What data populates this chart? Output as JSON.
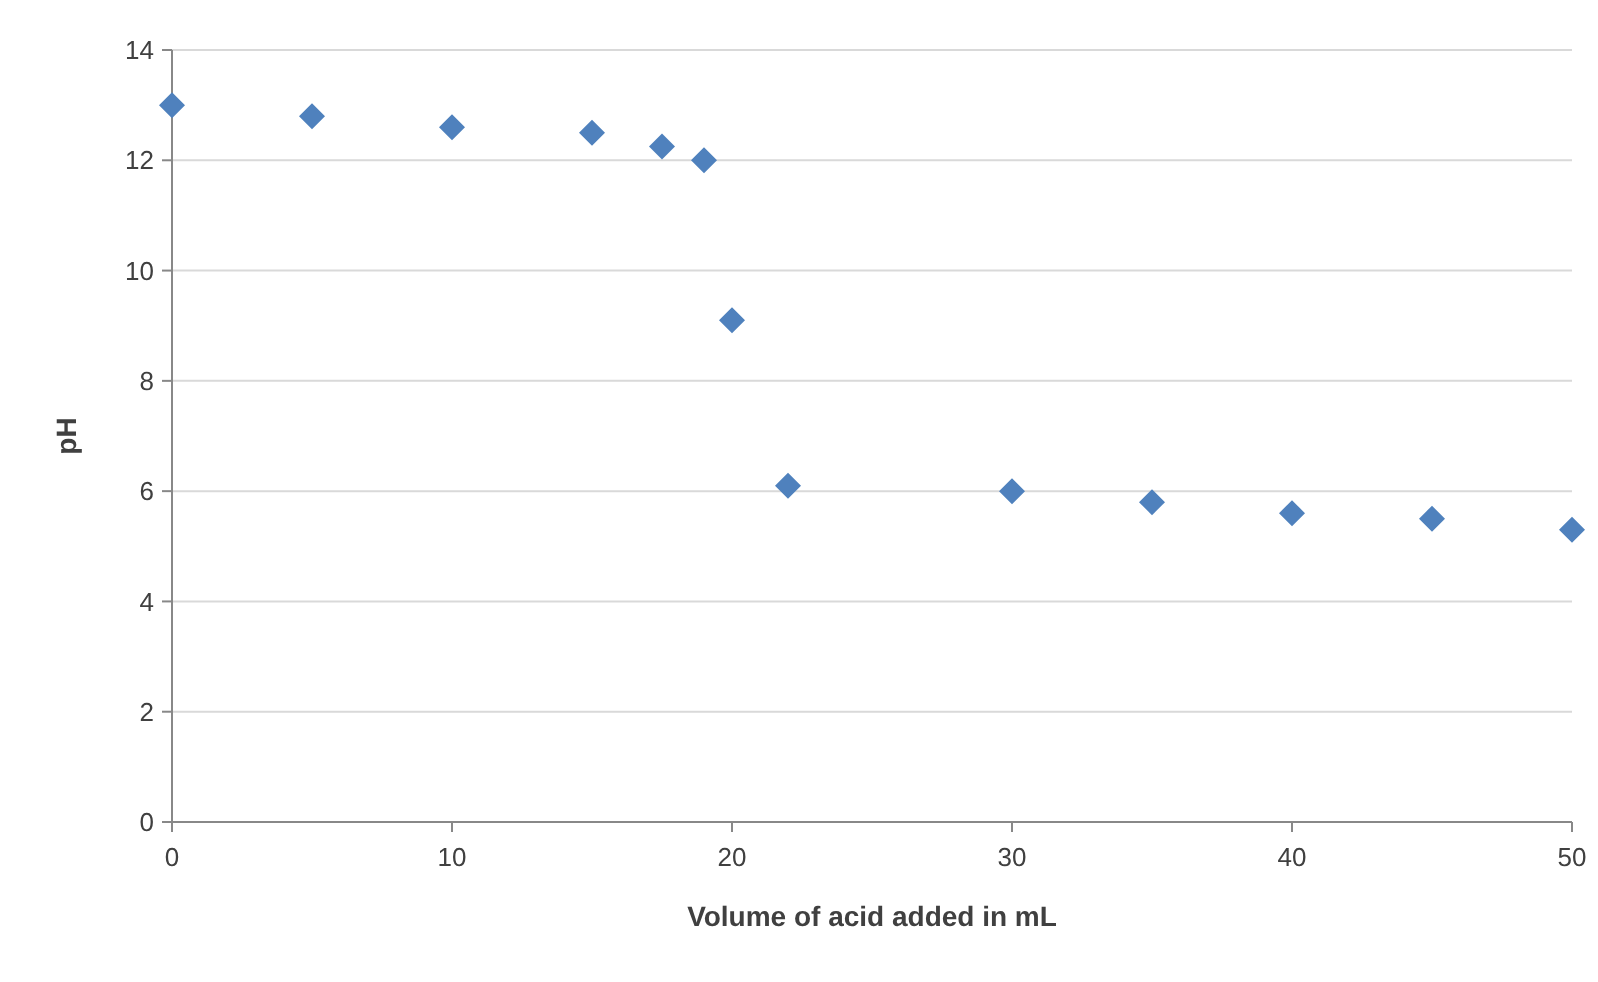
{
  "chart_data": {
    "type": "scatter",
    "xlabel": "Volume of acid added in mL",
    "ylabel": "pH",
    "x": [
      0,
      5,
      10,
      15,
      17.5,
      19,
      20,
      22,
      30,
      35,
      40,
      45,
      50
    ],
    "series": [
      {
        "color": "#4f81bd",
        "values": [
          13.0,
          12.8,
          12.6,
          12.5,
          12.25,
          12.0,
          9.1,
          6.1,
          6.0,
          5.8,
          5.6,
          5.5,
          5.3
        ]
      }
    ],
    "xlim": [
      0,
      50
    ],
    "xticks": [
      0,
      10,
      20,
      30,
      40,
      50
    ],
    "ylim": [
      0,
      14
    ],
    "yticks": [
      0,
      2,
      4,
      6,
      8,
      10,
      12,
      14
    ],
    "grid": "y",
    "marker": "diamond"
  }
}
